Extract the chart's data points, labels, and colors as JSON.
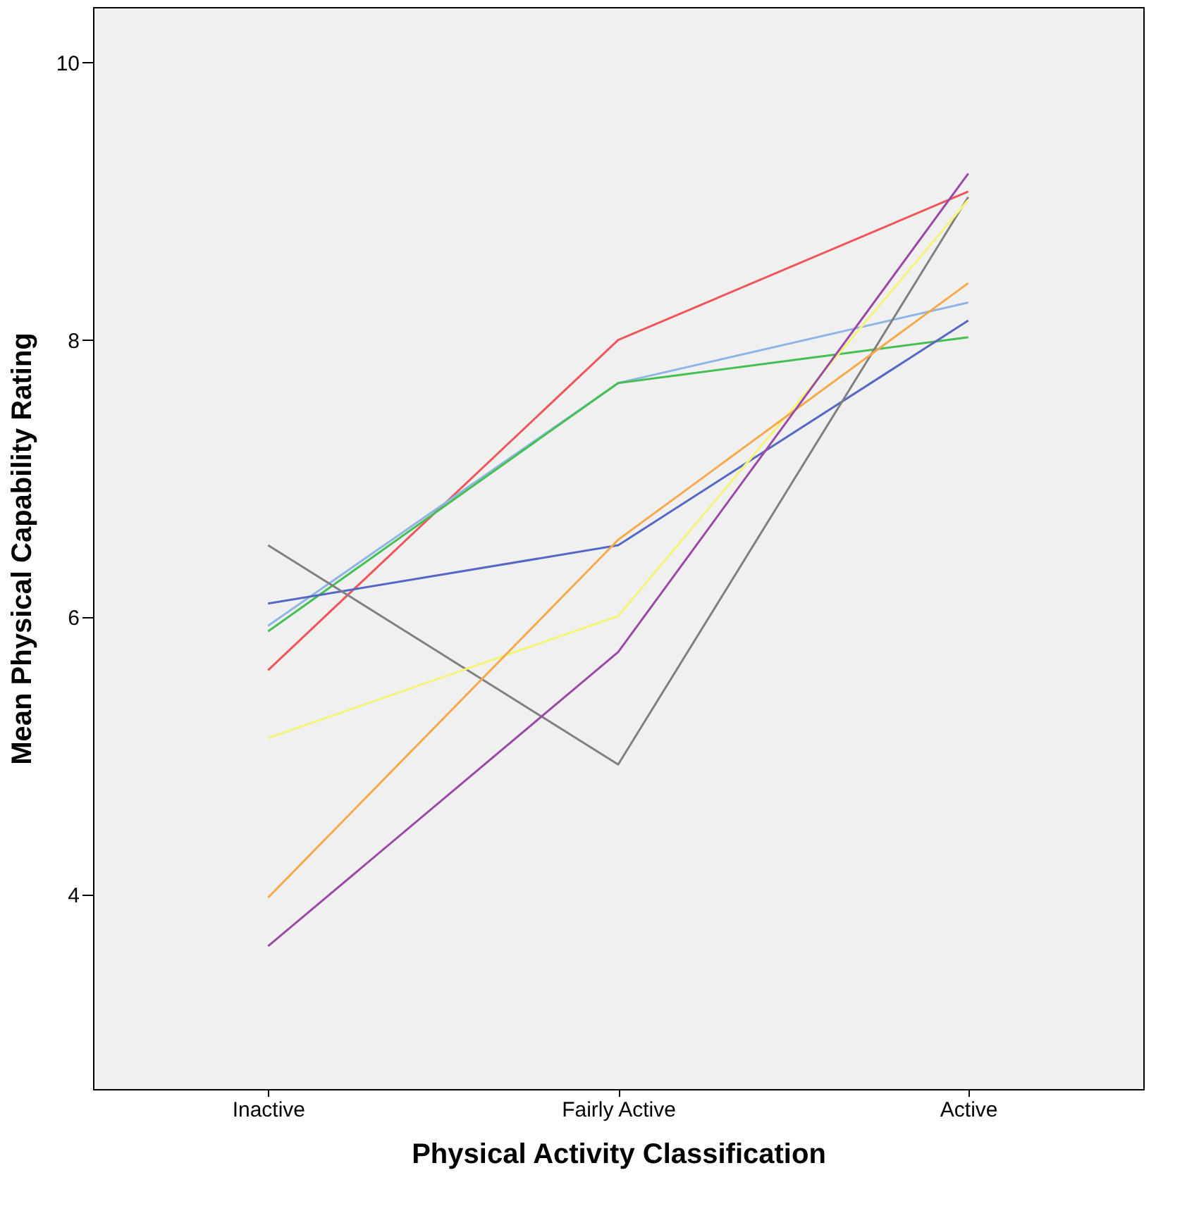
{
  "chart_data": {
    "type": "line",
    "xlabel": "Physical Activity Classification",
    "ylabel": "Mean Physical Capability Rating",
    "categories": [
      "Inactive",
      "Fairly Active",
      "Active"
    ],
    "ylim": [
      2.6,
      10.4
    ],
    "yticks": [
      4,
      6,
      8,
      10
    ],
    "grid": false,
    "legend": false,
    "marker": "none",
    "line_style": "solid",
    "series": [
      {
        "color": "#f0555a",
        "values": [
          5.62,
          8.0,
          9.07
        ]
      },
      {
        "color": "#8fb5e6",
        "values": [
          5.94,
          7.69,
          8.27
        ]
      },
      {
        "color": "#45c052",
        "values": [
          5.9,
          7.69,
          8.02
        ]
      },
      {
        "color": "#5468c4",
        "values": [
          6.1,
          6.52,
          8.14
        ]
      },
      {
        "color": "#808080",
        "values": [
          6.52,
          4.94,
          9.03
        ]
      },
      {
        "color": "#f4f47a",
        "values": [
          5.13,
          6.01,
          9.01
        ]
      },
      {
        "color": "#f7a94a",
        "values": [
          3.98,
          6.56,
          8.41
        ]
      },
      {
        "color": "#9a4aa6",
        "values": [
          3.63,
          5.75,
          9.2
        ]
      }
    ]
  }
}
